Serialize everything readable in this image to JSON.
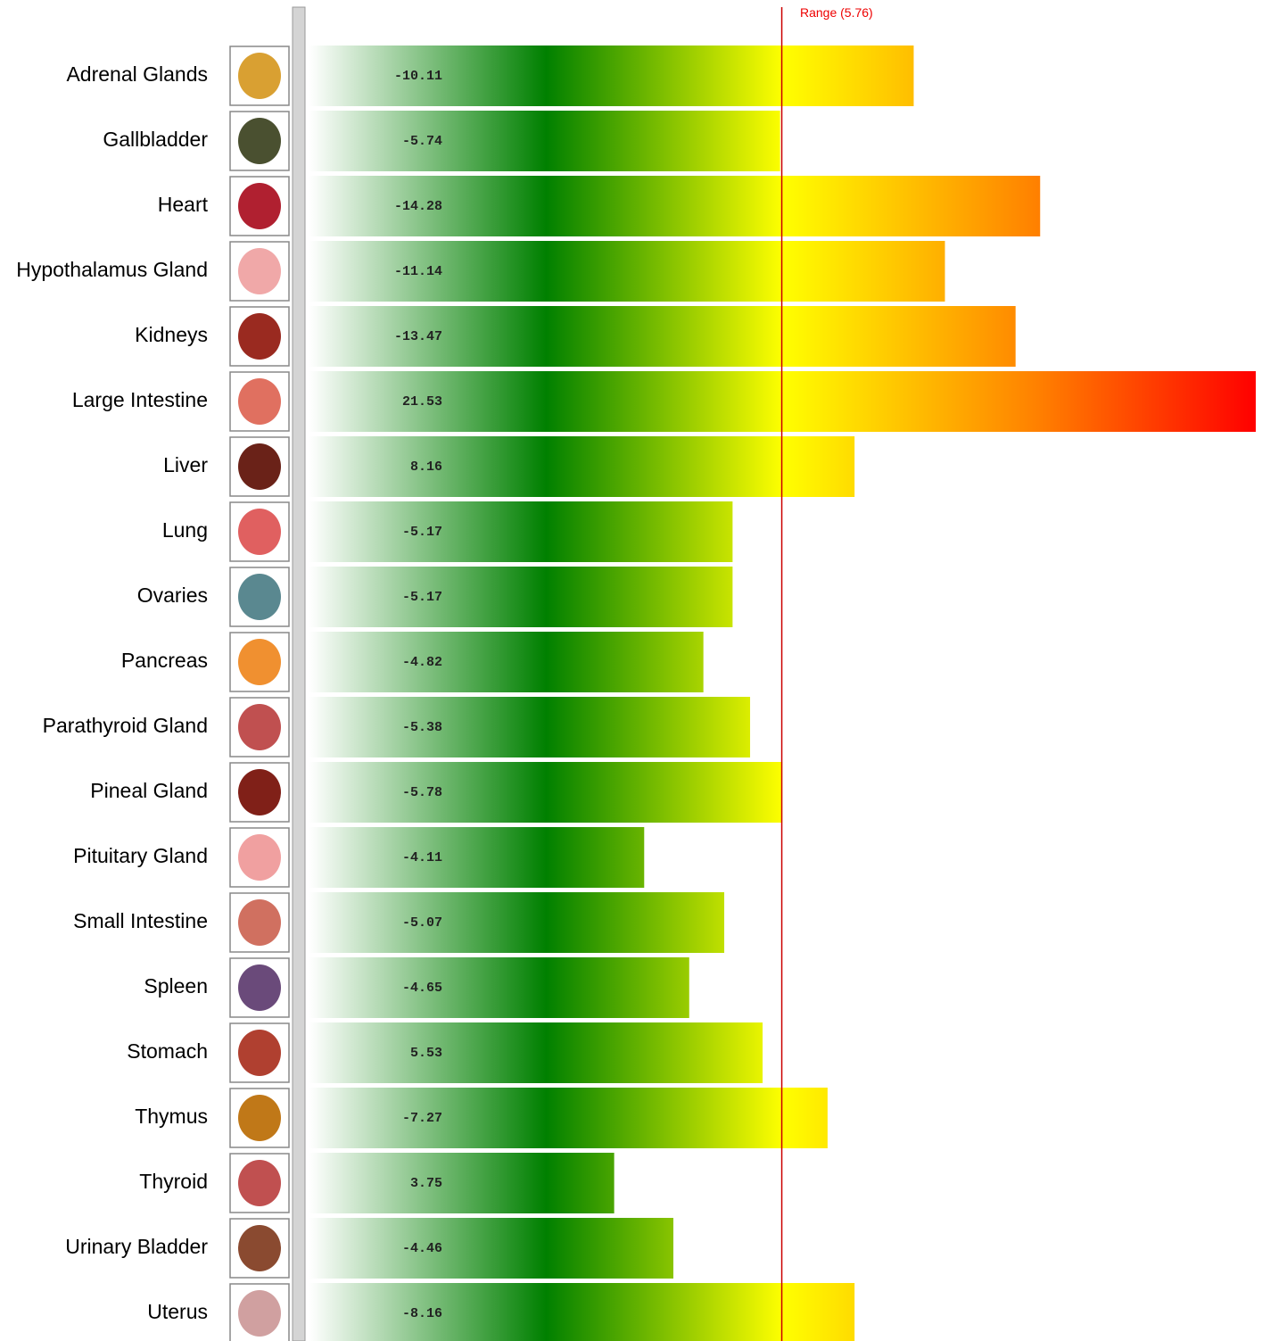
{
  "chart_data": {
    "type": "bar",
    "categories": [
      "Adrenal Glands",
      "Gallbladder",
      "Heart",
      "Hypothalamus Gland",
      "Kidneys",
      "Large Intestine",
      "Liver",
      "Lung",
      "Ovaries",
      "Pancreas",
      "Parathyroid Gland",
      "Pineal Gland",
      "Pituitary Gland",
      "Small Intestine",
      "Spleen",
      "Stomach",
      "Thymus",
      "Thyroid",
      "Urinary Bladder",
      "Uterus"
    ],
    "values": [
      -10.11,
      -5.74,
      -14.28,
      -11.14,
      -13.47,
      21.53,
      8.16,
      -5.17,
      -5.17,
      -4.82,
      -5.38,
      -5.78,
      -4.11,
      -5.07,
      -4.65,
      5.53,
      -7.27,
      3.75,
      -4.46,
      -8.16
    ],
    "range": {
      "value": 5.76,
      "label": "Range (5.76)"
    },
    "range_color": "#cc0000"
  }
}
